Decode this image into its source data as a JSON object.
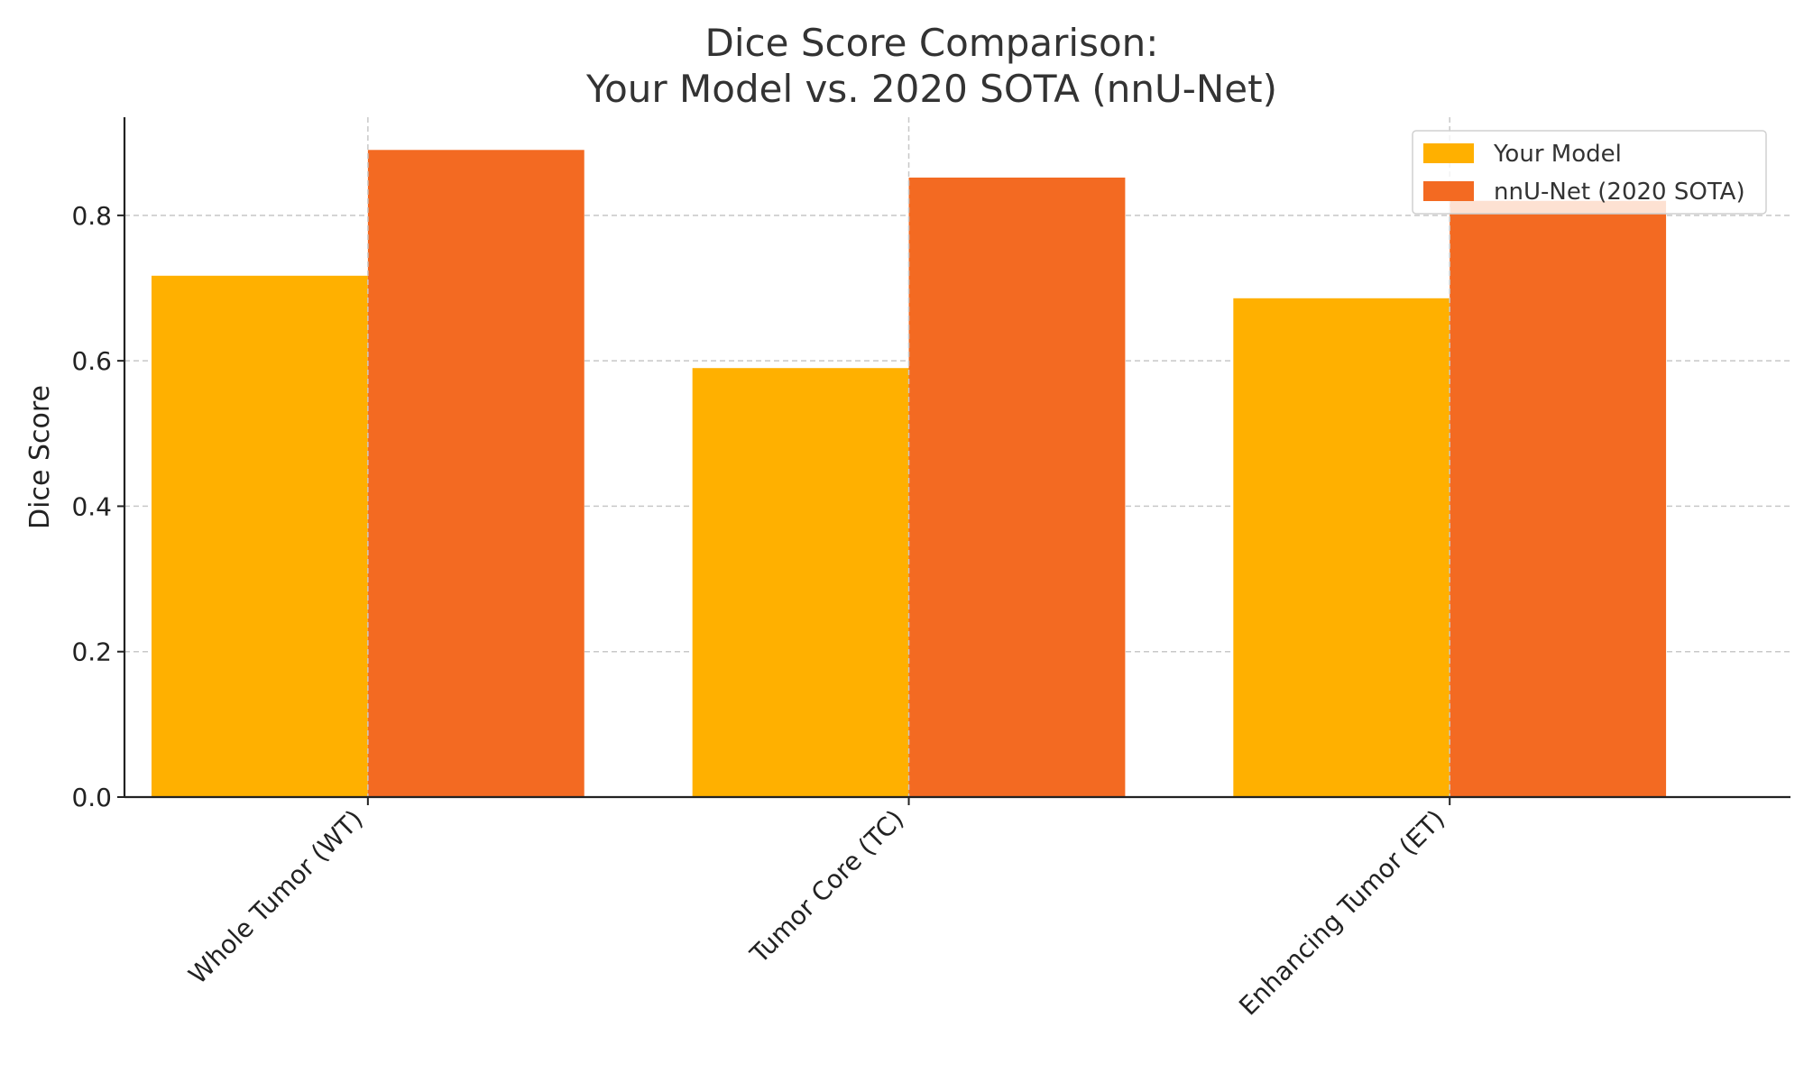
{
  "chart_data": {
    "type": "bar",
    "title_lines": [
      "Dice Score Comparison:",
      "Your Model vs. 2020 SOTA (nnU-Net)"
    ],
    "xlabel": "",
    "ylabel": "Dice Score",
    "categories": [
      "Whole Tumor (WT)",
      "Tumor Core (TC)",
      "Enhancing Tumor (ET)"
    ],
    "series": [
      {
        "name": "Your Model",
        "color": "#ffb000",
        "values": [
          0.717,
          0.59,
          0.686
        ]
      },
      {
        "name": "nnU-Net (2020 SOTA)",
        "color": "#f36a22",
        "values": [
          0.89,
          0.852,
          0.82
        ]
      }
    ],
    "ylim": [
      0,
      0.935
    ],
    "yticks": [
      "0.0",
      "0.2",
      "0.4",
      "0.6",
      "0.8"
    ],
    "grid": true,
    "legend": "top-right"
  }
}
